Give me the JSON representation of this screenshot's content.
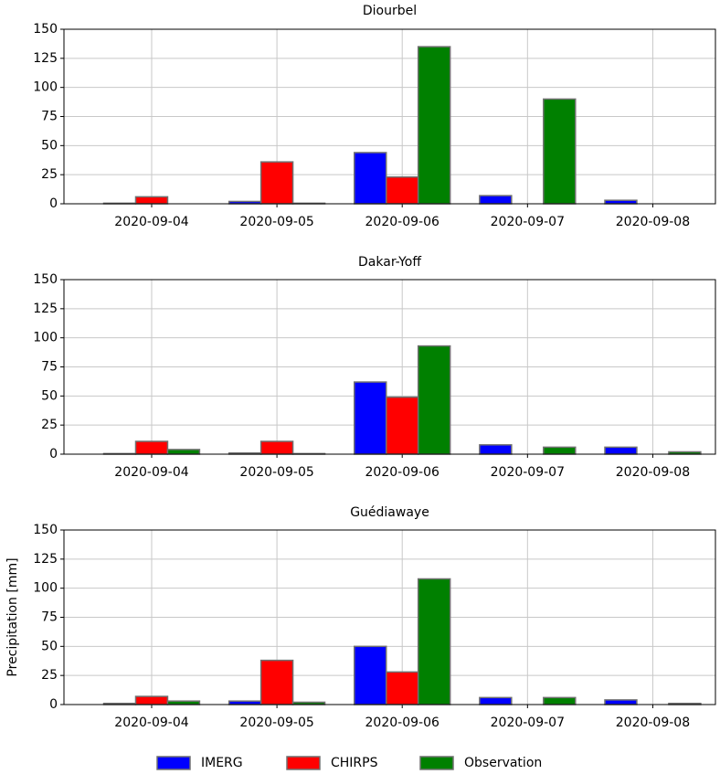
{
  "chart_data": [
    {
      "type": "bar",
      "title": "Diourbel",
      "categories": [
        "2020-09-04",
        "2020-09-05",
        "2020-09-06",
        "2020-09-07",
        "2020-09-08"
      ],
      "series": [
        {
          "name": "IMERG",
          "color": "#0000ff",
          "values": [
            0.5,
            2,
            44,
            7,
            3
          ]
        },
        {
          "name": "CHIRPS",
          "color": "#ff0000",
          "values": [
            6,
            36,
            23,
            0,
            0
          ]
        },
        {
          "name": "Observation",
          "color": "#008000",
          "values": [
            0,
            0.5,
            135,
            90,
            0
          ]
        }
      ],
      "ylim": [
        0,
        150
      ],
      "yticks": [
        0,
        25,
        50,
        75,
        100,
        125,
        150
      ],
      "grid": true
    },
    {
      "type": "bar",
      "title": "Dakar-Yoff",
      "categories": [
        "2020-09-04",
        "2020-09-05",
        "2020-09-06",
        "2020-09-07",
        "2020-09-08"
      ],
      "series": [
        {
          "name": "IMERG",
          "color": "#0000ff",
          "values": [
            0.5,
            1,
            62,
            8,
            6
          ]
        },
        {
          "name": "CHIRPS",
          "color": "#ff0000",
          "values": [
            11,
            11,
            49,
            0,
            0
          ]
        },
        {
          "name": "Observation",
          "color": "#008000",
          "values": [
            4,
            0.5,
            93,
            6,
            2
          ]
        }
      ],
      "ylim": [
        0,
        150
      ],
      "yticks": [
        0,
        25,
        50,
        75,
        100,
        125,
        150
      ],
      "grid": true
    },
    {
      "type": "bar",
      "title": "Guédiawaye",
      "y_label": "Precipitation [mm]",
      "categories": [
        "2020-09-04",
        "2020-09-05",
        "2020-09-06",
        "2020-09-07",
        "2020-09-08"
      ],
      "series": [
        {
          "name": "IMERG",
          "color": "#0000ff",
          "values": [
            1,
            3,
            50,
            6,
            4
          ]
        },
        {
          "name": "CHIRPS",
          "color": "#ff0000",
          "values": [
            7,
            38,
            28,
            0,
            0
          ]
        },
        {
          "name": "Observation",
          "color": "#008000",
          "values": [
            3,
            2,
            108,
            6,
            1
          ]
        }
      ],
      "ylim": [
        0,
        150
      ],
      "yticks": [
        0,
        25,
        50,
        75,
        100,
        125,
        150
      ],
      "grid": true
    }
  ]
}
